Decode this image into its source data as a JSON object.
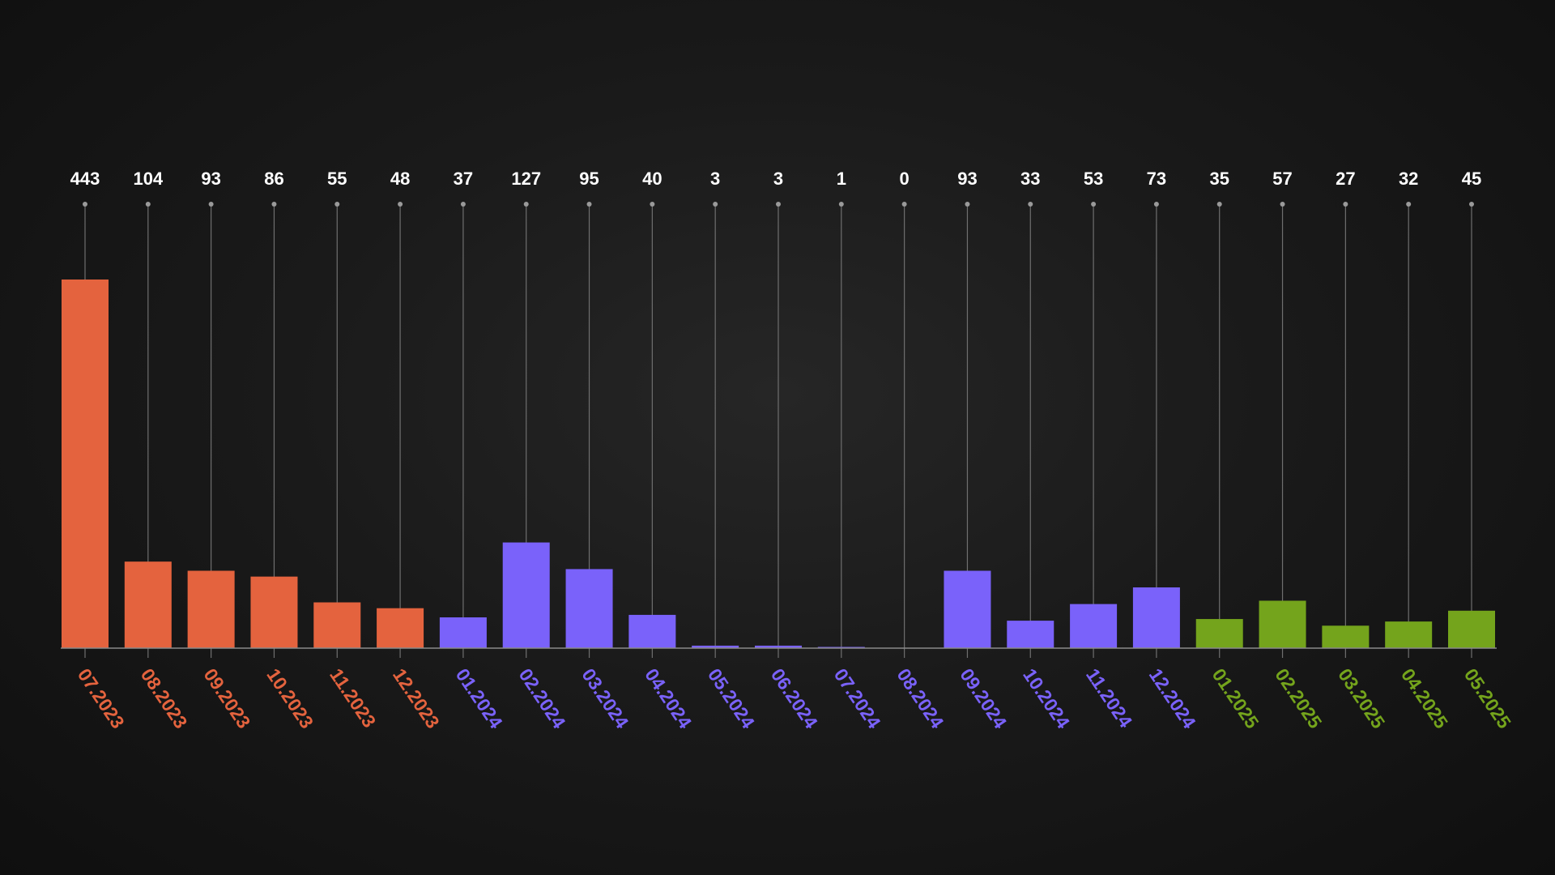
{
  "chart_data": {
    "type": "bar",
    "categories": [
      "07.2023",
      "08.2023",
      "09.2023",
      "10.2023",
      "11.2023",
      "12.2023",
      "01.2024",
      "02.2024",
      "03.2024",
      "04.2024",
      "05.2024",
      "06.2024",
      "07.2024",
      "08.2024",
      "09.2024",
      "10.2024",
      "11.2024",
      "12.2024",
      "01.2025",
      "02.2025",
      "03.2025",
      "04.2025",
      "05.2025"
    ],
    "values": [
      443,
      104,
      93,
      86,
      55,
      48,
      37,
      127,
      95,
      40,
      3,
      3,
      1,
      0,
      93,
      33,
      53,
      73,
      35,
      57,
      27,
      32,
      45
    ],
    "value_labels": [
      "443",
      "104",
      "93",
      "86",
      "55",
      "48",
      "37",
      "127",
      "95",
      "40",
      "3",
      "3",
      "1",
      "0",
      "93",
      "33",
      "53",
      "73",
      "35",
      "57",
      "27",
      "32",
      "45"
    ],
    "groups": [
      "2023",
      "2023",
      "2023",
      "2023",
      "2023",
      "2023",
      "2024",
      "2024",
      "2024",
      "2024",
      "2024",
      "2024",
      "2024",
      "2024",
      "2024",
      "2024",
      "2024",
      "2024",
      "2025",
      "2025",
      "2025",
      "2025",
      "2025"
    ],
    "group_colors": {
      "2023": "#e4633e",
      "2024": "#7a62fa",
      "2025": "#74a41c"
    },
    "ylim": [
      0,
      443
    ],
    "title": "",
    "xlabel": "",
    "ylabel": "",
    "grid": false,
    "legend": "none",
    "data_labels": "top",
    "category_label_rotation": "diagonal"
  }
}
